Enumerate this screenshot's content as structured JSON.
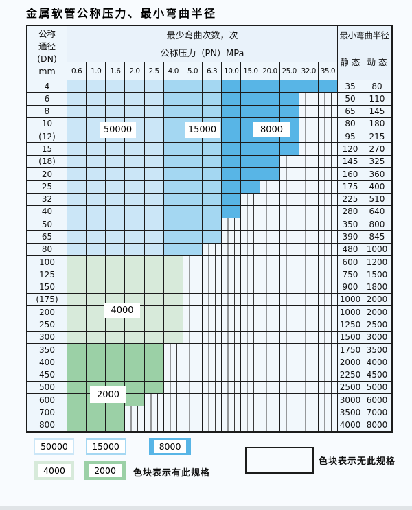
{
  "title": "金属软管公称压力、最小弯曲半径",
  "table": {
    "corner": {
      "line1": "公称",
      "line2": "通径",
      "line3": "(DN)",
      "line4": "mm"
    },
    "bend_cycles_header": "最少弯曲次数，次",
    "pressure_header": "公称压力（PN）MPa",
    "radius_header": "最小弯曲半径",
    "static_header": "静 态",
    "dynamic_header": "动 态",
    "pressures": [
      "0.6",
      "1.0",
      "1.6",
      "2.0",
      "2.5",
      "4.0",
      "5.0",
      "6.3",
      "10.0",
      "15.0",
      "20.0",
      "25.0",
      "32.0",
      "35.0"
    ],
    "rows": [
      {
        "dn": "4",
        "static": "35",
        "dynamic": "80",
        "max_pn": "35.0"
      },
      {
        "dn": "6",
        "static": "50",
        "dynamic": "110",
        "max_pn": "25.0"
      },
      {
        "dn": "8",
        "static": "65",
        "dynamic": "145",
        "max_pn": "25.0"
      },
      {
        "dn": "10",
        "static": "80",
        "dynamic": "180",
        "max_pn": "25.0"
      },
      {
        "dn": "(12)",
        "static": "95",
        "dynamic": "215",
        "max_pn": "25.0"
      },
      {
        "dn": "15",
        "static": "120",
        "dynamic": "270",
        "max_pn": "25.0"
      },
      {
        "dn": "(18)",
        "static": "145",
        "dynamic": "325",
        "max_pn": "20.0"
      },
      {
        "dn": "20",
        "static": "160",
        "dynamic": "360",
        "max_pn": "20.0"
      },
      {
        "dn": "25",
        "static": "175",
        "dynamic": "400",
        "max_pn": "15.0"
      },
      {
        "dn": "32",
        "static": "225",
        "dynamic": "510",
        "max_pn": "10.0"
      },
      {
        "dn": "40",
        "static": "280",
        "dynamic": "640",
        "max_pn": "10.0"
      },
      {
        "dn": "50",
        "static": "350",
        "dynamic": "800",
        "max_pn": "6.3"
      },
      {
        "dn": "65",
        "static": "390",
        "dynamic": "845",
        "max_pn": "6.3"
      },
      {
        "dn": "80",
        "static": "480",
        "dynamic": "1000",
        "max_pn": "5.0"
      },
      {
        "dn": "100",
        "static": "600",
        "dynamic": "1200",
        "max_pn": "4.0"
      },
      {
        "dn": "125",
        "static": "750",
        "dynamic": "1500",
        "max_pn": "4.0"
      },
      {
        "dn": "150",
        "static": "900",
        "dynamic": "1800",
        "max_pn": "4.0"
      },
      {
        "dn": "(175)",
        "static": "1000",
        "dynamic": "2000",
        "max_pn": "4.0"
      },
      {
        "dn": "200",
        "static": "1000",
        "dynamic": "2000",
        "max_pn": "4.0"
      },
      {
        "dn": "250",
        "static": "1250",
        "dynamic": "2500",
        "max_pn": "4.0"
      },
      {
        "dn": "300",
        "static": "1500",
        "dynamic": "3000",
        "max_pn": "4.0"
      },
      {
        "dn": "350",
        "static": "1750",
        "dynamic": "3500",
        "max_pn": "2.5"
      },
      {
        "dn": "400",
        "static": "2000",
        "dynamic": "4000",
        "max_pn": "2.5"
      },
      {
        "dn": "450",
        "static": "2250",
        "dynamic": "4500",
        "max_pn": "2.5"
      },
      {
        "dn": "500",
        "static": "2500",
        "dynamic": "5000",
        "max_pn": "2.5"
      },
      {
        "dn": "600",
        "static": "3000",
        "dynamic": "6000",
        "max_pn": "2.0"
      },
      {
        "dn": "700",
        "static": "3500",
        "dynamic": "7000",
        "max_pn": "1.6"
      },
      {
        "dn": "800",
        "static": "4000",
        "dynamic": "8000",
        "max_pn": "1.6"
      }
    ]
  },
  "cycle_zones": [
    {
      "cycles": "50000",
      "color": "#cbe6f7",
      "pn_range": [
        "0.6",
        "2.5"
      ],
      "dn_range": [
        "4",
        "80"
      ]
    },
    {
      "cycles": "15000",
      "color": "#a4d7f2",
      "pn_range": [
        "4.0",
        "6.3"
      ],
      "dn_range": [
        "4",
        "80"
      ]
    },
    {
      "cycles": "8000",
      "color": "#58b5e6",
      "pn_range": [
        "10.0",
        "35.0"
      ],
      "dn_range": [
        "4",
        "40"
      ]
    },
    {
      "cycles": "4000",
      "color": "#d7eada",
      "pn_range": [
        "0.6",
        "4.0"
      ],
      "dn_range": [
        "100",
        "300"
      ]
    },
    {
      "cycles": "2000",
      "color": "#9bd0a6",
      "pn_range": [
        "0.6",
        "2.5"
      ],
      "dn_range": [
        "350",
        "800"
      ]
    }
  ],
  "legend": {
    "has_spec_note": "色块表示有此规格",
    "no_spec_note": "色块表示无此规格"
  },
  "colors": {
    "blue_50000": "#cbe6f7",
    "blue_15000": "#a4d7f2",
    "blue_8000": "#58b5e6",
    "green_4000": "#d7eada",
    "green_2000": "#9bd0a6",
    "header_bg": "#e9f2fa",
    "label_cell_bg": "#eef6fc",
    "grid_line": "#1c1c1c"
  }
}
